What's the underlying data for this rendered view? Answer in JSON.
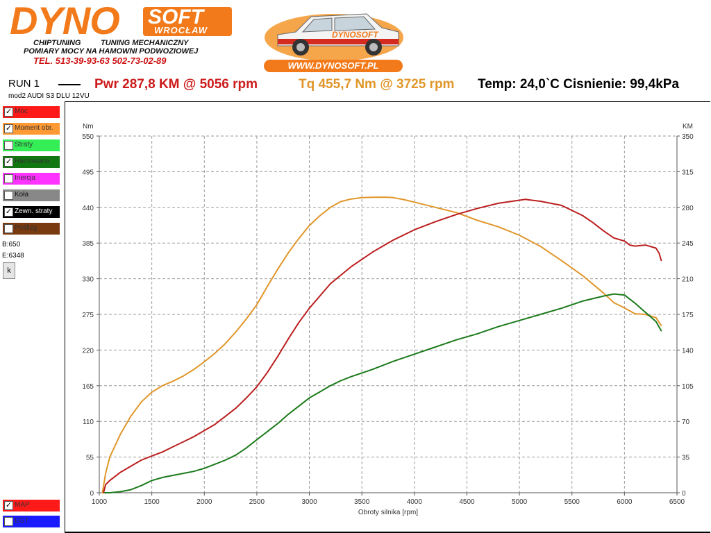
{
  "header": {
    "logo_main": "DYNO",
    "logo_soft": "SOFT",
    "logo_city": "WROCŁAW",
    "tagline_left": "CHIPTUNING",
    "tagline_right": "TUNING MECHANICZNY",
    "tagline2": "POMIARY MOCY NA HAMOWNI PODWOZIOWEJ",
    "phone": "TEL. 513-39-93-63   502-73-02-89",
    "car_logo_text": "DYNOSOFT",
    "website": "WWW.DYNOSOFT.PL"
  },
  "run": {
    "label": "RUN 1",
    "model": "mod2 AUDI S3 DLU 12VU",
    "power": "Pwr  287,8 KM @ 5056 rpm",
    "torque": "Tq 455,7 Nm @ 3725 rpm",
    "conditions": "Temp: 24,0`C Cisnienie: 99,4kPa"
  },
  "legend": [
    {
      "label": "Moc",
      "checked": true,
      "color": "#ff1a1a",
      "text_color": "#333333"
    },
    {
      "label": "Moment obr.",
      "checked": true,
      "color": "#ff9933",
      "text_color": "#333333"
    },
    {
      "label": "Straty",
      "checked": false,
      "color": "#33ee55",
      "text_color": "#333333"
    },
    {
      "label": "Hamowana",
      "checked": true,
      "color": "#117711",
      "text_color": "#333333"
    },
    {
      "label": "Inercja",
      "checked": false,
      "color": "#ff33ff",
      "text_color": "#333333"
    },
    {
      "label": "Koła",
      "checked": false,
      "color": "#888888",
      "text_color": "#111111"
    },
    {
      "label": "Zewn. straty",
      "checked": true,
      "color": "#000000",
      "text_color": "#ffffff"
    },
    {
      "label": "Poślizg",
      "checked": false,
      "color": "#7a3a10",
      "text_color": "#333333"
    }
  ],
  "legend_bottom": [
    {
      "label": "MAP",
      "checked": true,
      "color": "#ff1a1a",
      "text_color": "#333333"
    },
    {
      "label": "EGT",
      "checked": false,
      "color": "#1a1aff",
      "text_color": "#333333"
    }
  ],
  "side": {
    "begin": "B:650",
    "end": "E:6348",
    "button": "k"
  },
  "chart_data": {
    "type": "line",
    "xlabel": "Obroty silnika [rpm]",
    "ylabel": "Nm",
    "y2label": "KM",
    "xlim": [
      1000,
      6500
    ],
    "ylim": [
      0,
      550
    ],
    "y2lim": [
      0,
      350
    ],
    "xticks": [
      1000,
      1500,
      2000,
      2500,
      3000,
      3500,
      4000,
      4500,
      5000,
      5500,
      6000,
      6500
    ],
    "yticks": [
      0,
      55,
      110,
      165,
      220,
      275,
      330,
      385,
      440,
      495,
      550
    ],
    "y2ticks": [
      0,
      35,
      70,
      105,
      140,
      175,
      210,
      245,
      280,
      315,
      350
    ],
    "grid": true,
    "series": [
      {
        "name": "Moment obr.",
        "axis": "left",
        "color": "#e0962a",
        "x": [
          1030,
          1060,
          1100,
          1200,
          1300,
          1400,
          1500,
          1600,
          1700,
          1800,
          1900,
          2000,
          2100,
          2200,
          2300,
          2400,
          2500,
          2600,
          2700,
          2800,
          2900,
          3000,
          3100,
          3200,
          3300,
          3400,
          3500,
          3600,
          3725,
          3800,
          3900,
          4000,
          4200,
          4400,
          4600,
          4800,
          5000,
          5200,
          5400,
          5600,
          5800,
          5900,
          6000,
          6100,
          6200,
          6300,
          6350
        ],
        "y": [
          0,
          30,
          55,
          90,
          118,
          140,
          155,
          165,
          172,
          180,
          190,
          202,
          215,
          230,
          248,
          268,
          290,
          318,
          345,
          370,
          392,
          412,
          427,
          440,
          449,
          453,
          455,
          455.5,
          455.7,
          455,
          452,
          448,
          440,
          432,
          420,
          410,
          397,
          380,
          358,
          335,
          308,
          293,
          285,
          276,
          275,
          270,
          258
        ]
      },
      {
        "name": "Moc",
        "axis": "right",
        "color": "#bb1e1e",
        "x": [
          1040,
          1060,
          1100,
          1200,
          1300,
          1400,
          1500,
          1600,
          1700,
          1800,
          1900,
          2000,
          2100,
          2200,
          2300,
          2400,
          2500,
          2600,
          2700,
          2800,
          2900,
          3000,
          3200,
          3400,
          3600,
          3800,
          4000,
          4200,
          4400,
          4600,
          4800,
          5000,
          5056,
          5200,
          5400,
          5600,
          5700,
          5800,
          5900,
          6000,
          6050,
          6100,
          6200,
          6300,
          6330,
          6350
        ],
        "y": [
          0,
          8,
          12,
          20,
          26,
          32,
          36,
          40,
          45,
          50,
          55,
          61,
          67,
          75,
          83,
          93,
          104,
          118,
          134,
          151,
          167,
          181,
          205,
          222,
          236,
          248,
          258,
          266,
          273,
          279,
          284,
          287,
          287.8,
          286,
          282,
          272,
          265,
          257,
          250,
          247,
          243,
          242,
          243,
          240,
          235,
          228
        ]
      },
      {
        "name": "Hamowana",
        "axis": "right",
        "color": "#1b7a1b",
        "x": [
          1050,
          1100,
          1200,
          1300,
          1400,
          1500,
          1600,
          1700,
          1800,
          1900,
          2000,
          2100,
          2200,
          2300,
          2400,
          2500,
          2600,
          2700,
          2800,
          2900,
          3000,
          3100,
          3200,
          3300,
          3400,
          3600,
          3800,
          4000,
          4200,
          4400,
          4600,
          4800,
          5000,
          5200,
          5400,
          5600,
          5800,
          5900,
          6000,
          6100,
          6200,
          6300,
          6350
        ],
        "y": [
          0,
          0,
          1,
          3,
          7,
          12,
          15,
          17,
          19,
          21,
          24,
          28,
          32,
          37,
          44,
          52,
          60,
          68,
          77,
          85,
          93,
          99,
          105,
          110,
          114,
          121,
          129,
          136,
          143,
          150,
          156,
          163,
          169,
          175,
          181,
          188,
          193,
          195,
          194,
          186,
          177,
          168,
          159
        ]
      }
    ]
  }
}
